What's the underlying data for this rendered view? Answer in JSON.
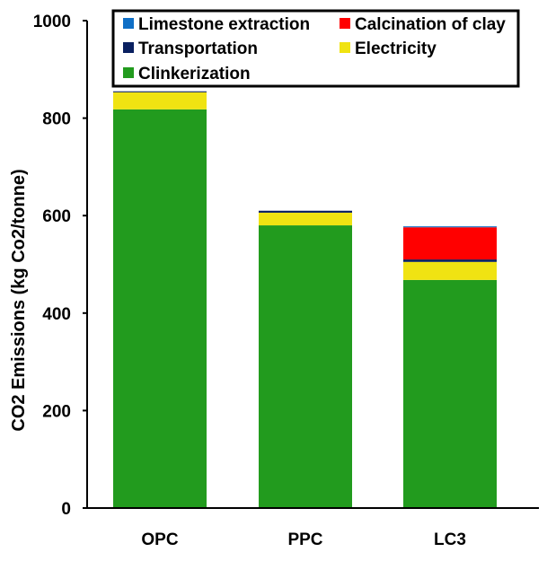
{
  "chart_data": {
    "type": "bar",
    "stacked": true,
    "title": "",
    "xlabel": "",
    "ylabel": "CO2 Emissions (kg Co2/tonne)",
    "ylim": [
      0,
      1000
    ],
    "yticks": [
      0,
      200,
      400,
      600,
      800,
      1000
    ],
    "categories": [
      "OPC",
      "PPC",
      "LC3"
    ],
    "series": [
      {
        "name": "Clinkerization",
        "color": "#229B1E",
        "values": [
          818,
          580,
          468
        ]
      },
      {
        "name": "Electricity",
        "color": "#F0E312",
        "values": [
          35,
          26,
          37
        ]
      },
      {
        "name": "Transportation",
        "color": "#0A2060",
        "values": [
          2,
          4,
          5
        ]
      },
      {
        "name": "Calcination of clay",
        "color": "#FF0000",
        "values": [
          0,
          0,
          66
        ]
      },
      {
        "name": "Limestone extraction",
        "color": "#0F6FC6",
        "values": [
          0,
          0,
          2
        ]
      }
    ],
    "legend": {
      "placement": "top",
      "order": [
        "Limestone extraction",
        "Calcination of clay",
        "Transportation",
        "Electricity",
        "Clinkerization"
      ]
    },
    "grid": false
  }
}
